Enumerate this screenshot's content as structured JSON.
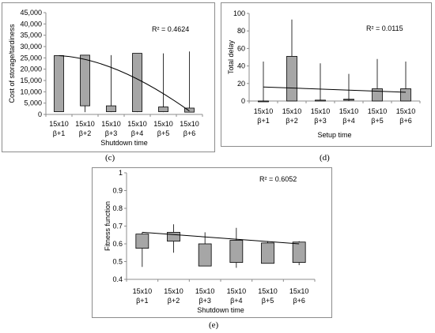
{
  "chart_data": [
    {
      "panel": "(c)",
      "type": "box",
      "xlabel": "Shutdown time",
      "ylabel": "Cost of storage/tardiness",
      "ylim": [
        0,
        45000
      ],
      "yticks": [
        "0",
        "5,000",
        "10,000",
        "15,000",
        "20,000",
        "25,000",
        "30,000",
        "35,000",
        "40,000",
        "45,000"
      ],
      "yticks_values": [
        0,
        5000,
        10000,
        15000,
        20000,
        25000,
        30000,
        35000,
        40000,
        45000
      ],
      "categories": [
        [
          "15x10",
          "β+1"
        ],
        [
          "15x10",
          "β+2"
        ],
        [
          "15x10",
          "β+3"
        ],
        [
          "15x10",
          "β+4"
        ],
        [
          "15x10",
          "β+5"
        ],
        [
          "15x10",
          "β+6"
        ]
      ],
      "boxes": [
        {
          "min": 1200,
          "q1": 1200,
          "q3": 26000,
          "max": 26000
        },
        {
          "min": 1000,
          "q1": 3800,
          "q3": 26200,
          "max": 26200
        },
        {
          "min": 1000,
          "q1": 1200,
          "q3": 3800,
          "max": 26200
        },
        {
          "min": 1000,
          "q1": 1200,
          "q3": 27000,
          "max": 27000
        },
        {
          "min": 1000,
          "q1": 1200,
          "q3": 3300,
          "max": 27000
        },
        {
          "min": 1000,
          "q1": 1000,
          "q3": 2800,
          "max": 27800
        }
      ],
      "trend": {
        "x": [
          1,
          6
        ],
        "y": [
          26000,
          1500
        ],
        "curve": true
      },
      "r2": "R² = 0.4624"
    },
    {
      "panel": "(d)",
      "type": "box",
      "xlabel": "Setup time",
      "ylabel": "Total delay",
      "ylim": [
        0,
        100
      ],
      "yticks": [
        "0",
        "20",
        "40",
        "60",
        "80",
        "100"
      ],
      "yticks_values": [
        0,
        20,
        40,
        60,
        80,
        100
      ],
      "categories": [
        [
          "15x10",
          "β+1"
        ],
        [
          "15x10",
          "β+2"
        ],
        [
          "15x10",
          "β+3"
        ],
        [
          "15x10",
          "β+4"
        ],
        [
          "15x10",
          "β+5"
        ],
        [
          "15x10",
          "β+6"
        ]
      ],
      "boxes": [
        {
          "min": 0,
          "q1": 0,
          "q3": 0,
          "max": 45
        },
        {
          "min": 0,
          "q1": 0,
          "q3": 51,
          "max": 93
        },
        {
          "min": 0,
          "q1": 0,
          "q3": 1,
          "max": 43
        },
        {
          "min": 0,
          "q1": 1,
          "q3": 2,
          "max": 31
        },
        {
          "min": 0,
          "q1": 0,
          "q3": 14,
          "max": 48
        },
        {
          "min": 0,
          "q1": 0,
          "q3": 14,
          "max": 45
        }
      ],
      "trend": {
        "x": [
          1,
          6
        ],
        "y": [
          16,
          10
        ],
        "curve": false
      },
      "r2": "R² = 0.0115"
    },
    {
      "panel": "(e)",
      "type": "box",
      "xlabel": "Shutdown time",
      "ylabel": "Fitness function",
      "ylim": [
        0.4,
        1
      ],
      "yticks": [
        "0.4",
        "0.5",
        "0.6",
        "0.7",
        "0.8",
        "0.9",
        "1"
      ],
      "yticks_values": [
        0.4,
        0.5,
        0.6,
        0.7,
        0.8,
        0.9,
        1.0
      ],
      "categories": [
        [
          "15x10",
          "β+1"
        ],
        [
          "15x10",
          "β+2"
        ],
        [
          "15x10",
          "β+3"
        ],
        [
          "15x10",
          "β+4"
        ],
        [
          "15x10",
          "β+5"
        ],
        [
          "15x10",
          "β+6"
        ]
      ],
      "boxes": [
        {
          "min": 0.47,
          "q1": 0.575,
          "q3": 0.655,
          "max": 0.665
        },
        {
          "min": 0.55,
          "q1": 0.615,
          "q3": 0.665,
          "max": 0.71
        },
        {
          "min": 0.475,
          "q1": 0.475,
          "q3": 0.6,
          "max": 0.665
        },
        {
          "min": 0.465,
          "q1": 0.495,
          "q3": 0.62,
          "max": 0.69
        },
        {
          "min": 0.49,
          "q1": 0.49,
          "q3": 0.605,
          "max": 0.615
        },
        {
          "min": 0.48,
          "q1": 0.495,
          "q3": 0.61,
          "max": 0.615
        }
      ],
      "trend": {
        "x": [
          1,
          6
        ],
        "y": [
          0.665,
          0.6
        ],
        "curve": false
      },
      "r2": "R² = 0.6052"
    }
  ],
  "colors": {
    "box_fill": "#a6a6a6",
    "axis": "#8c8c8c",
    "trend": "#000000",
    "text": "#000000"
  }
}
